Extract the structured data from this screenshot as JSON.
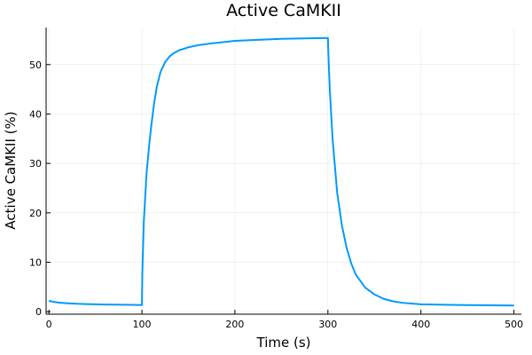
{
  "chart_data": {
    "type": "line",
    "title": "Active CaMKII",
    "xlabel": "Time (s)",
    "ylabel": "Active CaMKII (%)",
    "xlim": [
      -3,
      508
    ],
    "ylim": [
      -0.5,
      57.5
    ],
    "xticks": [
      0,
      100,
      200,
      300,
      400,
      500
    ],
    "yticks": [
      0,
      10,
      20,
      30,
      40,
      50
    ],
    "grid": true,
    "legend": "none",
    "series_color": "#009AFA",
    "series": [
      {
        "x": [
          0,
          5,
          10,
          20,
          30,
          40,
          50,
          60,
          70,
          80,
          90,
          100,
          100.5,
          102,
          105,
          108,
          110,
          113,
          116,
          120,
          125,
          130,
          135,
          140,
          150,
          160,
          175,
          200,
          225,
          250,
          275,
          300,
          300.5,
          302,
          305,
          310,
          315,
          320,
          325,
          330,
          340,
          350,
          360,
          370,
          380,
          400,
          425,
          450,
          475,
          500
        ],
        "y": [
          2.2,
          2.0,
          1.85,
          1.7,
          1.6,
          1.55,
          1.5,
          1.45,
          1.42,
          1.4,
          1.38,
          1.35,
          8.0,
          18.0,
          28.0,
          34.0,
          37.5,
          42.0,
          45.5,
          48.5,
          50.5,
          51.7,
          52.4,
          52.9,
          53.5,
          53.9,
          54.3,
          54.8,
          55.0,
          55.2,
          55.3,
          55.4,
          52.0,
          45.0,
          35.0,
          24.0,
          17.5,
          13.0,
          9.8,
          7.5,
          4.9,
          3.5,
          2.6,
          2.1,
          1.8,
          1.5,
          1.4,
          1.35,
          1.3,
          1.25
        ]
      }
    ]
  }
}
